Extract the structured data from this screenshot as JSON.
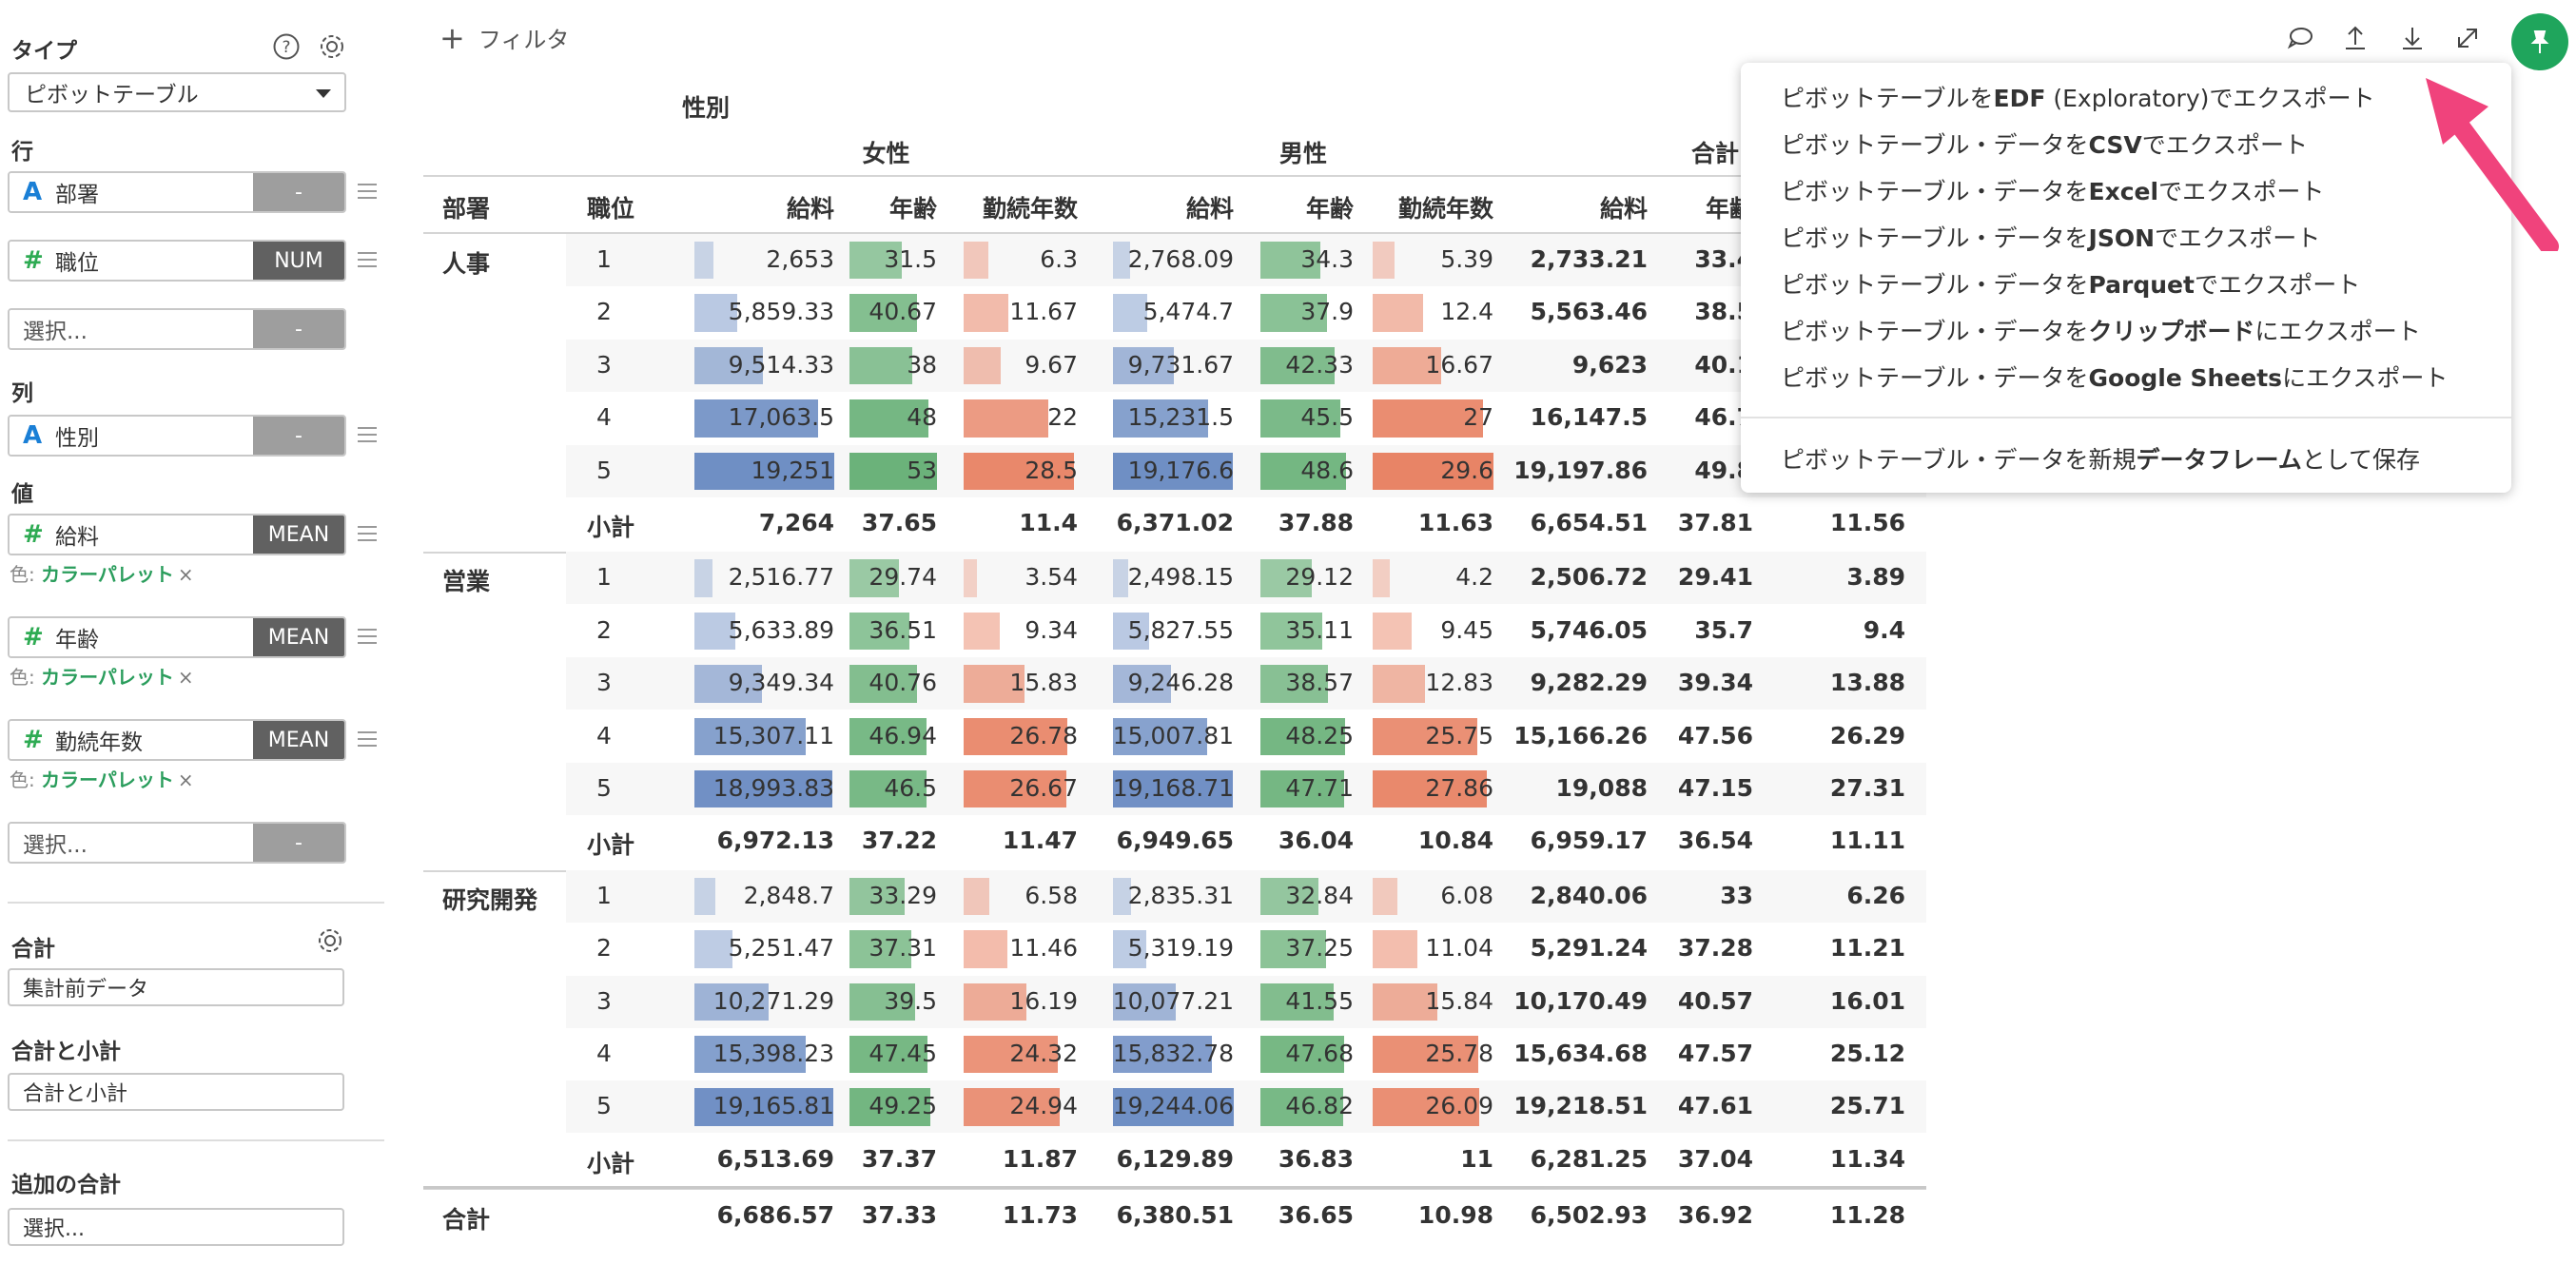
{
  "config": {
    "type_label": "タイプ",
    "type_value": "ピボットテーブル",
    "rows_label": "行",
    "rows": [
      {
        "type": "A",
        "name": "部署",
        "agg": "-",
        "agg_style": "gray"
      },
      {
        "type": "#",
        "name": "職位",
        "agg": "NUM",
        "agg_style": "dark"
      },
      {
        "type": "",
        "name": "選択...",
        "agg": "-",
        "agg_style": "gray"
      }
    ],
    "columns_label": "列",
    "columns": [
      {
        "type": "A",
        "name": "性別",
        "agg": "-",
        "agg_style": "gray"
      }
    ],
    "values_label": "値",
    "values": [
      {
        "type": "#",
        "name": "給料",
        "agg": "MEAN"
      },
      {
        "type": "#",
        "name": "年齢",
        "agg": "MEAN"
      },
      {
        "type": "#",
        "name": "勤続年数",
        "agg": "MEAN"
      }
    ],
    "color_prefix": "色:",
    "color_palette": "カラーパレット",
    "color_remove": "×",
    "values_select": {
      "name": "選択...",
      "agg": "-"
    },
    "total_label": "合計",
    "total_value": "集計前データ",
    "subtotal_label": "合計と小計",
    "subtotal_value": "合計と小計",
    "extra_total_label": "追加の合計",
    "extra_total_value": "選択..."
  },
  "toolbar": {
    "filter_label": "フィルタ",
    "icons": [
      "comment-icon",
      "upload-icon",
      "download-icon",
      "expand-icon",
      "pin-icon"
    ]
  },
  "pivot": {
    "column_group_label": "性別",
    "groups": [
      "女性",
      "男性",
      "合計"
    ],
    "row_header_1": "部署",
    "row_header_2": "職位",
    "measures": [
      "給料",
      "年齢",
      "勤続年数"
    ],
    "subtotal_label": "小計",
    "grand_total_label": "合計",
    "departments": [
      {
        "name": "人事",
        "rows": [
          {
            "pos": "1",
            "f": [
              "2,653",
              "31.5",
              "6.3"
            ],
            "m": [
              "2,768.09",
              "34.3",
              "5.39"
            ],
            "t": [
              "2,733.21",
              "33.4",
              ""
            ]
          },
          {
            "pos": "2",
            "f": [
              "5,859.33",
              "40.67",
              "11.67"
            ],
            "m": [
              "5,474.7",
              "37.9",
              "12.4"
            ],
            "t": [
              "5,563.46",
              "38.5",
              ""
            ]
          },
          {
            "pos": "3",
            "f": [
              "9,514.33",
              "38",
              "9.67"
            ],
            "m": [
              "9,731.67",
              "42.33",
              "16.67"
            ],
            "t": [
              "9,623",
              "40.1",
              ""
            ]
          },
          {
            "pos": "4",
            "f": [
              "17,063.5",
              "48",
              "22"
            ],
            "m": [
              "15,231.5",
              "45.5",
              "27"
            ],
            "t": [
              "16,147.5",
              "46.7",
              ""
            ]
          },
          {
            "pos": "5",
            "f": [
              "19,251",
              "53",
              "28.5"
            ],
            "m": [
              "19,176.6",
              "48.6",
              "29.6"
            ],
            "t": [
              "19,197.86",
              "49.8",
              ""
            ]
          }
        ],
        "subtotal": {
          "f": [
            "7,264",
            "37.65",
            "11.4"
          ],
          "m": [
            "6,371.02",
            "37.88",
            "11.63"
          ],
          "t": [
            "6,654.51",
            "37.81",
            "11.56"
          ]
        }
      },
      {
        "name": "営業",
        "rows": [
          {
            "pos": "1",
            "f": [
              "2,516.77",
              "29.74",
              "3.54"
            ],
            "m": [
              "2,498.15",
              "29.12",
              "4.2"
            ],
            "t": [
              "2,506.72",
              "29.41",
              "3.89"
            ]
          },
          {
            "pos": "2",
            "f": [
              "5,633.89",
              "36.51",
              "9.34"
            ],
            "m": [
              "5,827.55",
              "35.11",
              "9.45"
            ],
            "t": [
              "5,746.05",
              "35.7",
              "9.4"
            ]
          },
          {
            "pos": "3",
            "f": [
              "9,349.34",
              "40.76",
              "15.83"
            ],
            "m": [
              "9,246.28",
              "38.57",
              "12.83"
            ],
            "t": [
              "9,282.29",
              "39.34",
              "13.88"
            ]
          },
          {
            "pos": "4",
            "f": [
              "15,307.11",
              "46.94",
              "26.78"
            ],
            "m": [
              "15,007.81",
              "48.25",
              "25.75"
            ],
            "t": [
              "15,166.26",
              "47.56",
              "26.29"
            ]
          },
          {
            "pos": "5",
            "f": [
              "18,993.83",
              "46.5",
              "26.67"
            ],
            "m": [
              "19,168.71",
              "47.71",
              "27.86"
            ],
            "t": [
              "19,088",
              "47.15",
              "27.31"
            ]
          }
        ],
        "subtotal": {
          "f": [
            "6,972.13",
            "37.22",
            "11.47"
          ],
          "m": [
            "6,949.65",
            "36.04",
            "10.84"
          ],
          "t": [
            "6,959.17",
            "36.54",
            "11.11"
          ]
        }
      },
      {
        "name": "研究開発",
        "rows": [
          {
            "pos": "1",
            "f": [
              "2,848.7",
              "33.29",
              "6.58"
            ],
            "m": [
              "2,835.31",
              "32.84",
              "6.08"
            ],
            "t": [
              "2,840.06",
              "33",
              "6.26"
            ]
          },
          {
            "pos": "2",
            "f": [
              "5,251.47",
              "37.31",
              "11.46"
            ],
            "m": [
              "5,319.19",
              "37.25",
              "11.04"
            ],
            "t": [
              "5,291.24",
              "37.28",
              "11.21"
            ]
          },
          {
            "pos": "3",
            "f": [
              "10,271.29",
              "39.5",
              "16.19"
            ],
            "m": [
              "10,077.21",
              "41.55",
              "15.84"
            ],
            "t": [
              "10,170.49",
              "40.57",
              "16.01"
            ]
          },
          {
            "pos": "4",
            "f": [
              "15,398.23",
              "47.45",
              "24.32"
            ],
            "m": [
              "15,832.78",
              "47.68",
              "25.78"
            ],
            "t": [
              "15,634.68",
              "47.57",
              "25.12"
            ]
          },
          {
            "pos": "5",
            "f": [
              "19,165.81",
              "49.25",
              "24.94"
            ],
            "m": [
              "19,244.06",
              "46.82",
              "26.09"
            ],
            "t": [
              "19,218.51",
              "47.61",
              "25.71"
            ]
          }
        ],
        "subtotal": {
          "f": [
            "6,513.69",
            "37.37",
            "11.87"
          ],
          "m": [
            "6,129.89",
            "36.83",
            "11"
          ],
          "t": [
            "6,281.25",
            "37.04",
            "11.34"
          ]
        }
      }
    ],
    "grand_total": {
      "f": [
        "6,686.57",
        "37.33",
        "11.73"
      ],
      "m": [
        "6,380.51",
        "36.65",
        "10.98"
      ],
      "t": [
        "6,502.93",
        "36.92",
        "11.28"
      ]
    },
    "bar_colors": {
      "salary": "#6f8fc4",
      "age": "#6bb27a",
      "tenure": "#e88466"
    }
  },
  "export_menu": {
    "items": [
      {
        "pre": "ピボットテーブルを",
        "b": "EDF",
        "post": " (Exploratory)でエクスポート"
      },
      {
        "pre": "ピボットテーブル・データを",
        "b": "CSV",
        "post": "でエクスポート"
      },
      {
        "pre": "ピボットテーブル・データを",
        "b": "Excel",
        "post": "でエクスポート"
      },
      {
        "pre": "ピボットテーブル・データを",
        "b": "JSON",
        "post": "でエクスポート"
      },
      {
        "pre": "ピボットテーブル・データを",
        "b": "Parquet",
        "post": "でエクスポート"
      },
      {
        "pre": "ピボットテーブル・データを",
        "b": "クリップボード",
        "post": "にエクスポート"
      },
      {
        "pre": "ピボットテーブル・データを",
        "b": "Google Sheets",
        "post": "にエクスポート"
      }
    ],
    "save_item": {
      "pre": "ピボットテーブル・データを新規",
      "b": "データフレーム",
      "post": "として保存"
    }
  },
  "colors": {
    "accent_green": "#1fa55c",
    "arrow_pink": "#f0437c"
  }
}
